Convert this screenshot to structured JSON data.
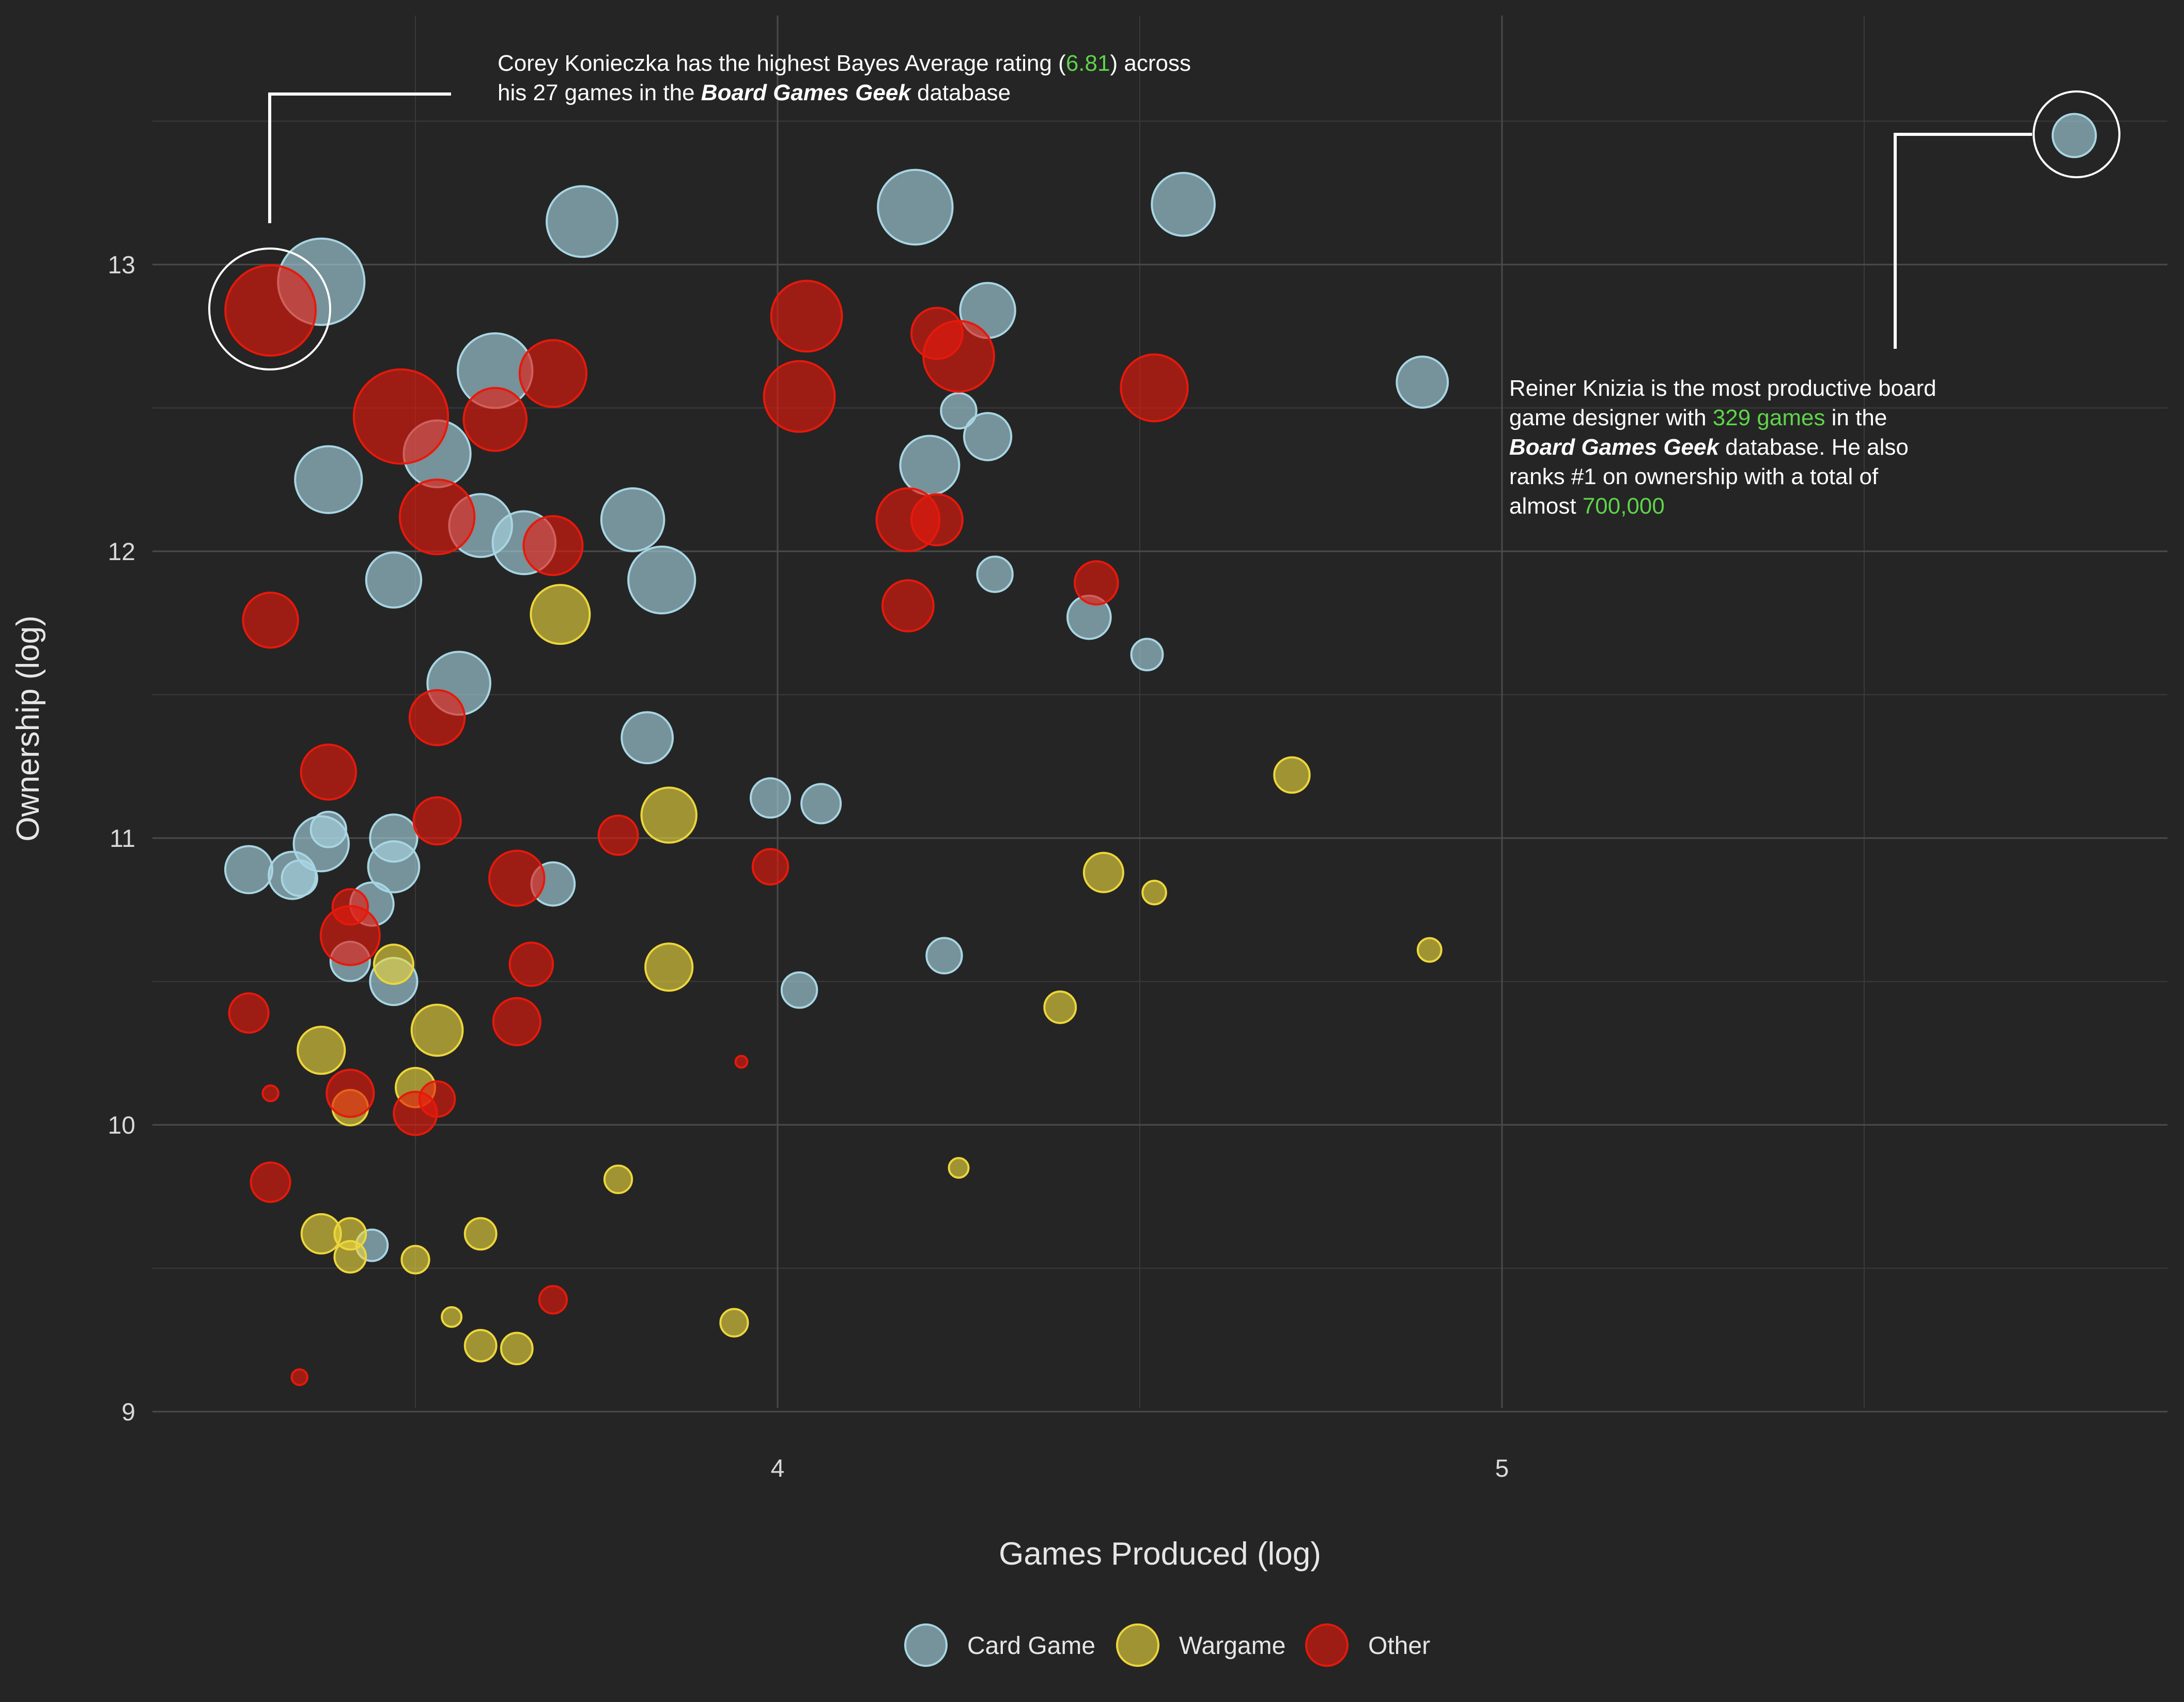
{
  "chart_data": {
    "type": "scatter",
    "xlabel": "Games Produced (log)",
    "ylabel": "Ownership (log)",
    "xlim": [
      3.14,
      5.92
    ],
    "ylim": [
      8.87,
      13.88
    ],
    "x_ticks": [
      4,
      5
    ],
    "y_ticks": [
      9,
      10,
      11,
      12,
      13
    ],
    "grid": true,
    "legend_position": "bottom",
    "colors": {
      "Card Game": "#a8d5e2",
      "Wargame": "#ecd63c",
      "Other": "#e6190b",
      "highlight": "#5ed44a",
      "background": "#252525"
    },
    "series": [
      {
        "name": "Card Game",
        "points": [
          {
            "x": 3.37,
            "y": 12.94,
            "size": 2.2
          },
          {
            "x": 3.38,
            "y": 12.25,
            "size": 1.7
          },
          {
            "x": 3.47,
            "y": 11.9,
            "size": 1.4
          },
          {
            "x": 3.53,
            "y": 12.34,
            "size": 1.7
          },
          {
            "x": 3.59,
            "y": 12.09,
            "size": 1.6
          },
          {
            "x": 3.61,
            "y": 12.63,
            "size": 1.9
          },
          {
            "x": 3.65,
            "y": 12.03,
            "size": 1.6
          },
          {
            "x": 3.73,
            "y": 13.15,
            "size": 1.8
          },
          {
            "x": 3.8,
            "y": 12.11,
            "size": 1.6
          },
          {
            "x": 3.84,
            "y": 11.9,
            "size": 1.7
          },
          {
            "x": 3.56,
            "y": 11.54,
            "size": 1.6
          },
          {
            "x": 3.82,
            "y": 11.35,
            "size": 1.3
          },
          {
            "x": 3.27,
            "y": 10.89,
            "size": 1.2
          },
          {
            "x": 3.33,
            "y": 10.87,
            "size": 1.2
          },
          {
            "x": 3.34,
            "y": 10.86,
            "size": 0.9
          },
          {
            "x": 3.37,
            "y": 10.98,
            "size": 1.4
          },
          {
            "x": 3.38,
            "y": 11.03,
            "size": 0.9
          },
          {
            "x": 3.44,
            "y": 10.77,
            "size": 1.1
          },
          {
            "x": 3.47,
            "y": 11.0,
            "size": 1.2
          },
          {
            "x": 3.47,
            "y": 10.9,
            "size": 1.3
          },
          {
            "x": 3.41,
            "y": 10.57,
            "size": 1.0
          },
          {
            "x": 3.47,
            "y": 10.5,
            "size": 1.2
          },
          {
            "x": 3.44,
            "y": 9.58,
            "size": 0.8
          },
          {
            "x": 3.69,
            "y": 10.84,
            "size": 1.1
          },
          {
            "x": 3.99,
            "y": 11.14,
            "size": 1.0
          },
          {
            "x": 4.06,
            "y": 11.12,
            "size": 1.0
          },
          {
            "x": 4.03,
            "y": 10.47,
            "size": 0.9
          },
          {
            "x": 4.19,
            "y": 13.2,
            "size": 1.9
          },
          {
            "x": 4.21,
            "y": 12.3,
            "size": 1.5
          },
          {
            "x": 4.25,
            "y": 12.49,
            "size": 0.9
          },
          {
            "x": 4.29,
            "y": 12.84,
            "size": 1.4
          },
          {
            "x": 4.29,
            "y": 12.4,
            "size": 1.2
          },
          {
            "x": 4.3,
            "y": 11.92,
            "size": 0.9
          },
          {
            "x": 4.43,
            "y": 11.77,
            "size": 1.1
          },
          {
            "x": 4.51,
            "y": 11.64,
            "size": 0.8
          },
          {
            "x": 4.23,
            "y": 10.59,
            "size": 0.9
          },
          {
            "x": 4.56,
            "y": 13.21,
            "size": 1.6
          },
          {
            "x": 4.89,
            "y": 12.59,
            "size": 1.3
          },
          {
            "x": 5.79,
            "y": 13.45,
            "size": 1.1
          }
        ]
      },
      {
        "name": "Wargame",
        "points": [
          {
            "x": 3.7,
            "y": 11.78,
            "size": 1.5
          },
          {
            "x": 3.85,
            "y": 11.08,
            "size": 1.4
          },
          {
            "x": 3.85,
            "y": 10.55,
            "size": 1.2
          },
          {
            "x": 3.47,
            "y": 10.56,
            "size": 1.0
          },
          {
            "x": 3.37,
            "y": 10.26,
            "size": 1.2
          },
          {
            "x": 3.53,
            "y": 10.33,
            "size": 1.3
          },
          {
            "x": 3.5,
            "y": 10.13,
            "size": 1.0
          },
          {
            "x": 3.41,
            "y": 10.06,
            "size": 0.9
          },
          {
            "x": 3.78,
            "y": 9.81,
            "size": 0.7
          },
          {
            "x": 3.37,
            "y": 9.62,
            "size": 1.0
          },
          {
            "x": 3.41,
            "y": 9.62,
            "size": 0.8
          },
          {
            "x": 3.41,
            "y": 9.54,
            "size": 0.8
          },
          {
            "x": 3.5,
            "y": 9.53,
            "size": 0.7
          },
          {
            "x": 3.59,
            "y": 9.62,
            "size": 0.8
          },
          {
            "x": 3.55,
            "y": 9.33,
            "size": 0.5
          },
          {
            "x": 3.59,
            "y": 9.23,
            "size": 0.8
          },
          {
            "x": 3.64,
            "y": 9.22,
            "size": 0.8
          },
          {
            "x": 3.94,
            "y": 9.31,
            "size": 0.7
          },
          {
            "x": 4.25,
            "y": 9.85,
            "size": 0.5
          },
          {
            "x": 4.45,
            "y": 10.88,
            "size": 1.0
          },
          {
            "x": 4.52,
            "y": 10.81,
            "size": 0.6
          },
          {
            "x": 4.39,
            "y": 10.41,
            "size": 0.8
          },
          {
            "x": 4.71,
            "y": 11.22,
            "size": 0.9
          },
          {
            "x": 4.9,
            "y": 10.61,
            "size": 0.6
          }
        ]
      },
      {
        "name": "Other",
        "points": [
          {
            "x": 3.3,
            "y": 12.84,
            "size": 2.3
          },
          {
            "x": 3.48,
            "y": 12.47,
            "size": 2.4
          },
          {
            "x": 3.53,
            "y": 12.12,
            "size": 1.9
          },
          {
            "x": 3.61,
            "y": 12.46,
            "size": 1.6
          },
          {
            "x": 3.69,
            "y": 12.62,
            "size": 1.7
          },
          {
            "x": 3.69,
            "y": 12.02,
            "size": 1.5
          },
          {
            "x": 3.3,
            "y": 11.76,
            "size": 1.4
          },
          {
            "x": 3.53,
            "y": 11.42,
            "size": 1.4
          },
          {
            "x": 3.38,
            "y": 11.23,
            "size": 1.4
          },
          {
            "x": 3.53,
            "y": 11.06,
            "size": 1.2
          },
          {
            "x": 3.78,
            "y": 11.01,
            "size": 1.0
          },
          {
            "x": 3.64,
            "y": 10.86,
            "size": 1.4
          },
          {
            "x": 3.99,
            "y": 10.9,
            "size": 0.9
          },
          {
            "x": 3.41,
            "y": 10.76,
            "size": 0.9
          },
          {
            "x": 3.41,
            "y": 10.66,
            "size": 1.5
          },
          {
            "x": 3.66,
            "y": 10.56,
            "size": 1.1
          },
          {
            "x": 3.64,
            "y": 10.36,
            "size": 1.2
          },
          {
            "x": 3.27,
            "y": 10.39,
            "size": 1.0
          },
          {
            "x": 3.41,
            "y": 10.11,
            "size": 1.2
          },
          {
            "x": 3.3,
            "y": 10.11,
            "size": 0.4
          },
          {
            "x": 3.5,
            "y": 10.04,
            "size": 1.1
          },
          {
            "x": 3.53,
            "y": 10.09,
            "size": 0.9
          },
          {
            "x": 3.3,
            "y": 9.8,
            "size": 1.0
          },
          {
            "x": 3.95,
            "y": 10.22,
            "size": 0.3
          },
          {
            "x": 3.69,
            "y": 9.39,
            "size": 0.7
          },
          {
            "x": 3.34,
            "y": 9.12,
            "size": 0.4
          },
          {
            "x": 4.04,
            "y": 12.82,
            "size": 1.8
          },
          {
            "x": 4.03,
            "y": 12.54,
            "size": 1.8
          },
          {
            "x": 4.22,
            "y": 12.76,
            "size": 1.3
          },
          {
            "x": 4.25,
            "y": 12.68,
            "size": 1.8
          },
          {
            "x": 4.18,
            "y": 12.11,
            "size": 1.6
          },
          {
            "x": 4.22,
            "y": 12.11,
            "size": 1.3
          },
          {
            "x": 4.18,
            "y": 11.81,
            "size": 1.3
          },
          {
            "x": 4.44,
            "y": 11.89,
            "size": 1.1
          },
          {
            "x": 4.52,
            "y": 12.57,
            "size": 1.7
          }
        ]
      }
    ],
    "annotations": [
      {
        "line1_a": "Corey Konieczka has the highest Bayes Average rating (",
        "line1_value": "6.81",
        "line1_b": ") across",
        "line2_a": "his 27 games in the ",
        "line2_em": "Board Games Geek",
        "line2_b": " database"
      },
      {
        "line1": "Reiner Knizia is the most productive board",
        "line2_a": "game designer with ",
        "line2_value": "329 games",
        "line2_b": " in the",
        "line3_em": "Board Games Geek",
        "line3_b": " database. He also",
        "line4": "ranks #1 on ownership with a total of",
        "line5_a": "almost ",
        "line5_value": "700,000"
      }
    ]
  }
}
